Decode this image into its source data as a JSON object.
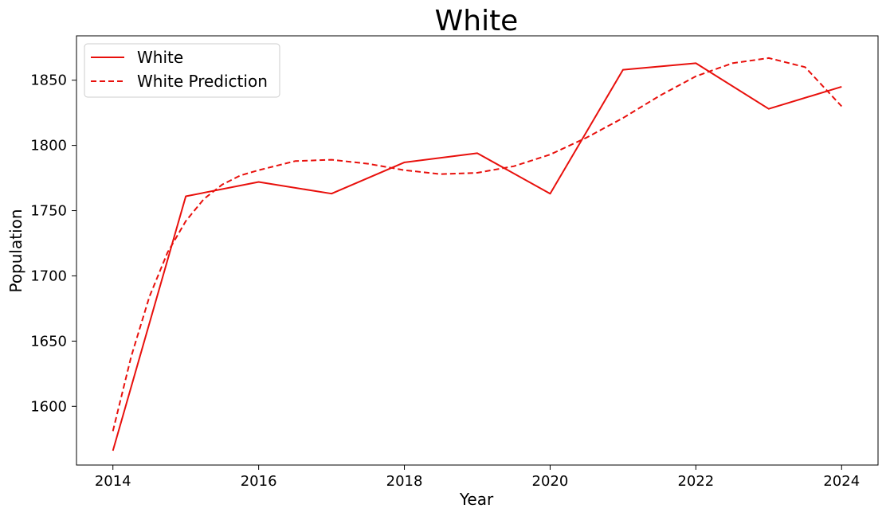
{
  "chart_data": {
    "type": "line",
    "title": "White",
    "xlabel": "Year",
    "ylabel": "Population",
    "xlim": [
      2013.5,
      2024.5
    ],
    "ylim": [
      1555,
      1884
    ],
    "xticks": [
      2014,
      2016,
      2018,
      2020,
      2022,
      2024
    ],
    "yticks": [
      1600,
      1650,
      1700,
      1750,
      1800,
      1850
    ],
    "grid": false,
    "legend_position": "top-left",
    "series": [
      {
        "name": "White",
        "style": "solid",
        "color": "#e8100c",
        "x": [
          2014,
          2015,
          2016,
          2017,
          2018,
          2019,
          2020,
          2021,
          2022,
          2023,
          2024
        ],
        "y": [
          1566,
          1761,
          1772,
          1763,
          1787,
          1794,
          1763,
          1858,
          1863,
          1828,
          1845
        ]
      },
      {
        "name": "White Prediction",
        "style": "dashed",
        "color": "#e8100c",
        "x": [
          2014,
          2014.25,
          2014.5,
          2014.75,
          2015,
          2015.25,
          2015.5,
          2015.75,
          2016,
          2016.5,
          2017,
          2017.5,
          2018,
          2018.5,
          2019,
          2019.5,
          2020,
          2020.5,
          2021,
          2021.5,
          2022,
          2022.5,
          2023,
          2023.5,
          2024
        ],
        "y": [
          1581,
          1638,
          1684,
          1718,
          1742,
          1759,
          1770,
          1777,
          1781,
          1788,
          1789,
          1786,
          1781,
          1778,
          1779,
          1784,
          1793,
          1806,
          1821,
          1838,
          1853,
          1863,
          1867,
          1860,
          1830
        ]
      }
    ]
  }
}
